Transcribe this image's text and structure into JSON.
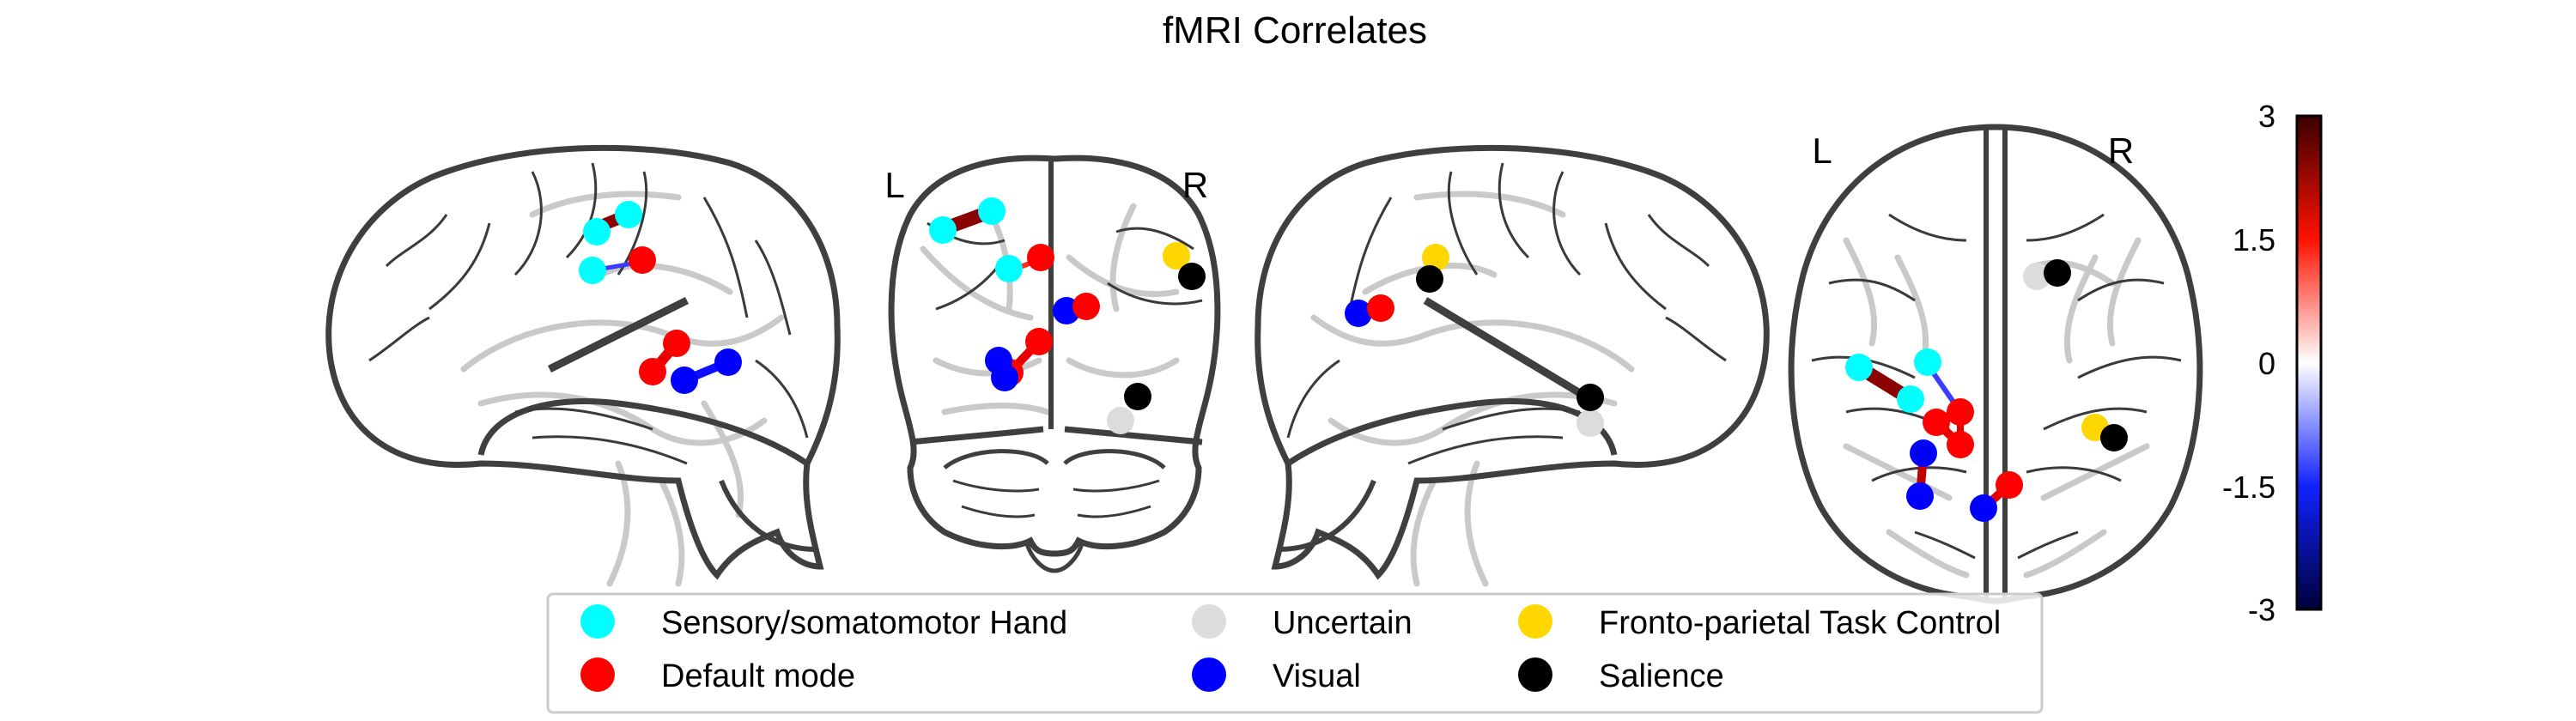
{
  "title": "fMRI Correlates",
  "orientation": {
    "left": "L",
    "right": "R"
  },
  "colorbar": {
    "ticks": [
      "3",
      "1.5",
      "0",
      "-1.5",
      "-3"
    ],
    "gradient": [
      "#2a0000",
      "#ff1c00",
      "#ffffff",
      "#1c2cff",
      "#00002a"
    ]
  },
  "legend": [
    {
      "label": "Sensory/somatomotor Hand",
      "color": "#00ffff"
    },
    {
      "label": "Default mode",
      "color": "#ff0000"
    },
    {
      "label": "Uncertain",
      "color": "#dcdcdc"
    },
    {
      "label": "Visual",
      "color": "#0000ff"
    },
    {
      "label": "Fronto-parietal Task Control",
      "color": "#ffd700"
    },
    {
      "label": "Salience",
      "color": "#000000"
    }
  ]
}
